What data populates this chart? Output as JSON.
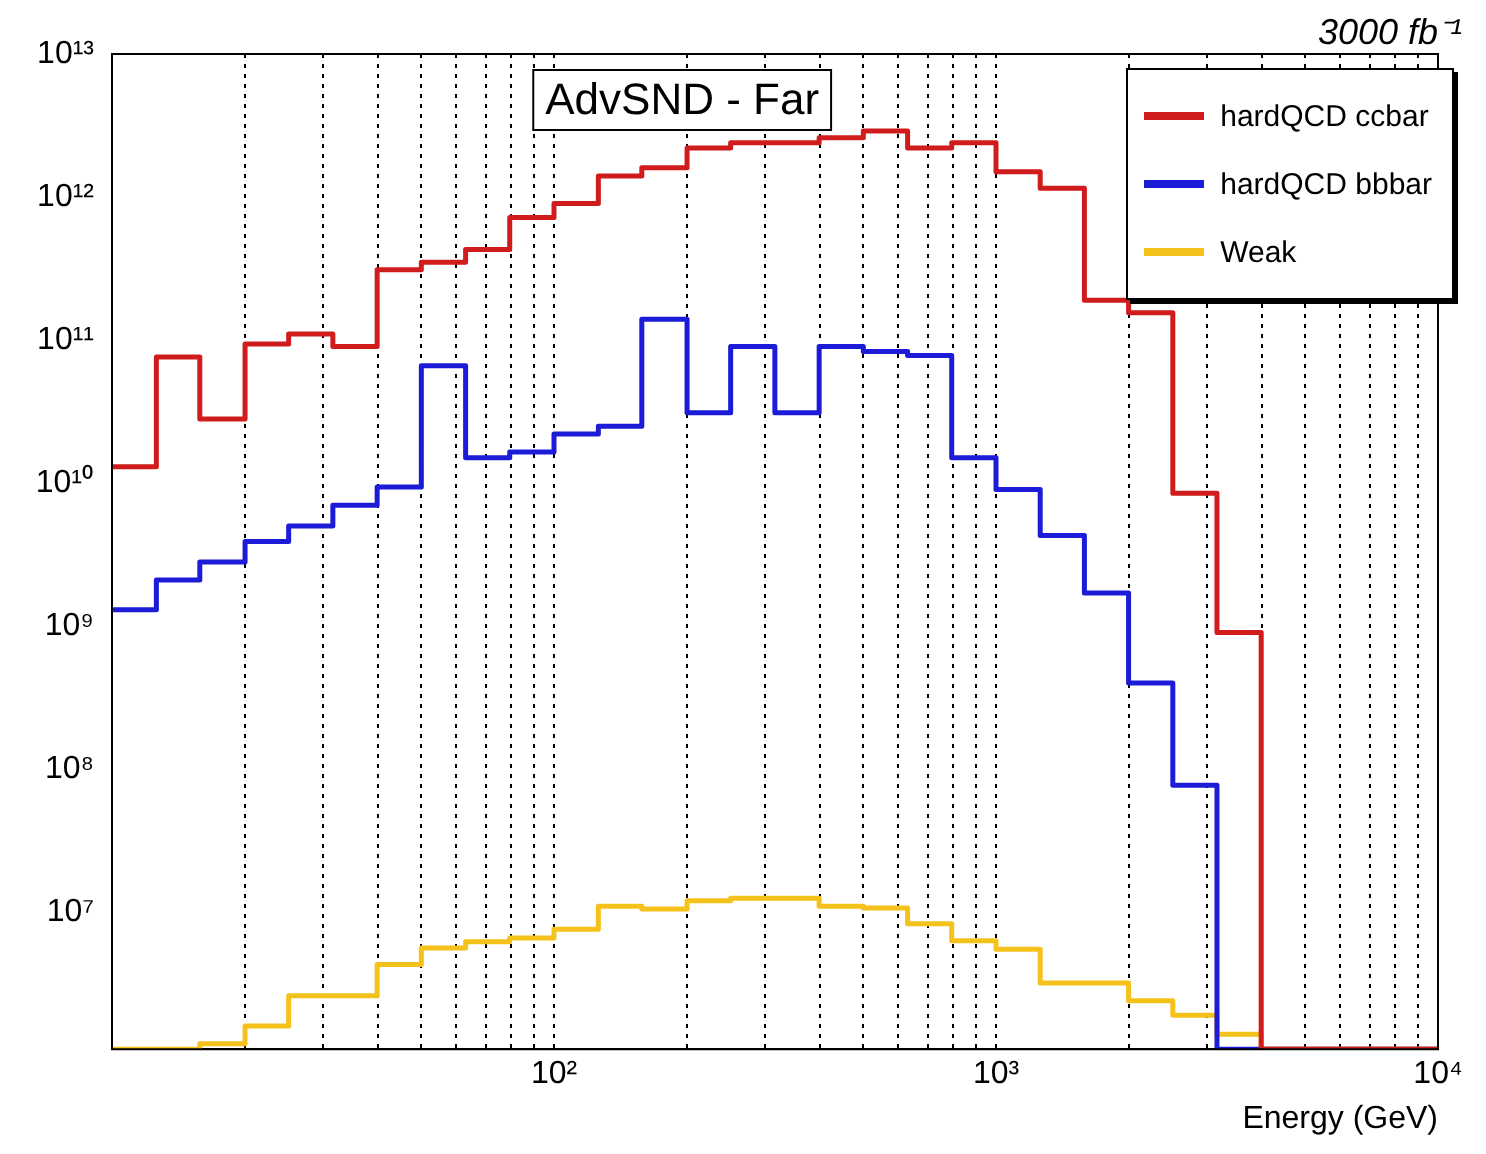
{
  "chart_data": {
    "type": "histogram",
    "title": "AdvSND - Far",
    "xlabel": "Energy (GeV)",
    "annotations": [
      "3000 fb⁻¹"
    ],
    "bins": [
      10,
      12.6,
      15.8,
      20,
      25.1,
      31.6,
      39.8,
      50.1,
      63.1,
      79.4,
      100,
      126,
      158,
      200,
      251,
      316,
      398,
      501,
      631,
      794,
      1000,
      1259,
      1585,
      1995,
      2512,
      3162,
      3981,
      5012,
      6310,
      7943,
      10000
    ],
    "series": [
      {
        "name": "hardQCD ccbar",
        "color": "#d01c1c",
        "values": [
          13000000000.0,
          76000000000.0,
          28000000000.0,
          94000000000.0,
          110000000000.0,
          90000000000.0,
          310000000000.0,
          350000000000.0,
          430000000000.0,
          720000000000.0,
          900000000000.0,
          1400000000000.0,
          1600000000000.0,
          2200000000000.0,
          2400000000000.0,
          2400000000000.0,
          2600000000000.0,
          2900000000000.0,
          2200000000000.0,
          2400000000000.0,
          1500000000000.0,
          1150000000000.0,
          190000000000.0,
          155000000000.0,
          8500000000.0,
          900000000.0,
          null,
          null,
          null,
          null
        ]
      },
      {
        "name": "hardQCD bbbar",
        "color": "#1c1cd8",
        "values": [
          1300000000.0,
          2100000000.0,
          2800000000.0,
          3900000000.0,
          5000000000.0,
          7000000000.0,
          9400000000.0,
          66000000000.0,
          15000000000.0,
          16500000000.0,
          22000000000.0,
          25000000000.0,
          140000000000.0,
          31000000000.0,
          90000000000.0,
          31000000000.0,
          90000000000.0,
          83000000000.0,
          78000000000.0,
          15000000000.0,
          9000000000.0,
          4300000000.0,
          1700000000.0,
          400000000.0,
          77000000.0,
          null,
          null,
          null,
          null,
          null
        ]
      },
      {
        "name": "Weak",
        "color": "#f5c21b",
        "values": [
          null,
          null,
          1200000.0,
          1600000.0,
          2600000.0,
          2600000.0,
          4300000.0,
          5600000.0,
          6200000.0,
          6600000.0,
          7600000.0,
          11000000.0,
          10500000.0,
          12000000.0,
          12500000.0,
          12500000.0,
          11000000.0,
          10700000.0,
          8300000.0,
          6300000.0,
          5500000.0,
          3200000.0,
          3200000.0,
          2400000.0,
          1900000.0,
          1400000.0,
          null,
          null,
          null,
          null
        ]
      }
    ],
    "xlim": [
      10,
      10000
    ],
    "ylim": [
      1100000.0,
      10000000000000.0
    ],
    "log": "xy",
    "grid": "x",
    "legend": "top right",
    "xticks": [
      {
        "value": 20,
        "label": null
      },
      {
        "value": 30,
        "label": null
      },
      {
        "value": 40,
        "label": null
      },
      {
        "value": 50,
        "label": null
      },
      {
        "value": 60,
        "label": null
      },
      {
        "value": 70,
        "label": null
      },
      {
        "value": 80,
        "label": null
      },
      {
        "value": 90,
        "label": null
      },
      {
        "value": 100,
        "label": "10²"
      },
      {
        "value": 200,
        "label": null
      },
      {
        "value": 300,
        "label": null
      },
      {
        "value": 400,
        "label": null
      },
      {
        "value": 500,
        "label": null
      },
      {
        "value": 600,
        "label": null
      },
      {
        "value": 700,
        "label": null
      },
      {
        "value": 800,
        "label": null
      },
      {
        "value": 900,
        "label": null
      },
      {
        "value": 1000,
        "label": "10³"
      },
      {
        "value": 2000,
        "label": null
      },
      {
        "value": 3000,
        "label": null
      },
      {
        "value": 4000,
        "label": null
      },
      {
        "value": 5000,
        "label": null
      },
      {
        "value": 6000,
        "label": null
      },
      {
        "value": 7000,
        "label": null
      },
      {
        "value": 8000,
        "label": null
      },
      {
        "value": 9000,
        "label": null
      },
      {
        "value": 10000,
        "label": "10⁴"
      }
    ],
    "yticks": [
      {
        "value": 10000000.0,
        "label": "10⁷"
      },
      {
        "value": 100000000.0,
        "label": "10⁸"
      },
      {
        "value": 1000000000.0,
        "label": "10⁹"
      },
      {
        "value": 10000000000.0,
        "label": "10¹⁰"
      },
      {
        "value": 100000000000.0,
        "label": "10¹¹"
      },
      {
        "value": 1000000000000.0,
        "label": "10¹²"
      },
      {
        "value": 10000000000000.0,
        "label": "10¹³"
      }
    ]
  }
}
